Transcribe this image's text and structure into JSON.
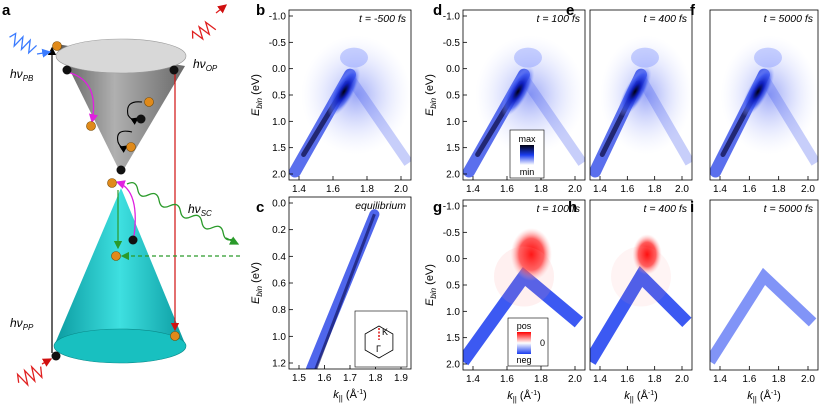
{
  "panels": {
    "a": {
      "label": "a",
      "hv_pb": "hν",
      "hv_pb_sub": "PB",
      "hv_op": "hν",
      "hv_op_sub": "OP",
      "hv_sc": "hν",
      "hv_sc_sub": "SC",
      "hv_pp": "hν",
      "hv_pp_sub": "PP"
    },
    "b": {
      "label": "b",
      "time": "t = -500 fs"
    },
    "c": {
      "label": "c",
      "time": "equilibrium"
    },
    "d": {
      "label": "d",
      "time": "t = 100 fs"
    },
    "e": {
      "label": "e",
      "time": "t = 400 fs"
    },
    "f": {
      "label": "f",
      "time": "t = 5000 fs"
    },
    "g": {
      "label": "g",
      "time": "t = 100 fs"
    },
    "h": {
      "label": "h",
      "time": "t = 400 fs"
    },
    "i": {
      "label": "i",
      "time": "t = 5000 fs"
    }
  },
  "axes": {
    "ebin_label": "E",
    "ebin_sub": "bin",
    "ebin_unit": " (eV)",
    "k_label": "k",
    "k_sub": "||",
    "k_unit": " (Å",
    "k_unit_exp": "-1",
    "k_unit_close": ")",
    "top_row_y_ticks": [
      "-1.0",
      "-0.5",
      "0.0",
      "0.5",
      "1.0",
      "1.5",
      "2.0"
    ],
    "top_row_x_ticks": [
      "1.4",
      "1.6",
      "1.8",
      "2.0"
    ],
    "c_y_ticks": [
      "0.0",
      "0.2",
      "0.4",
      "0.6",
      "0.8",
      "1.0",
      "1.2"
    ],
    "c_x_ticks": [
      "1.5",
      "1.6",
      "1.7",
      "1.8",
      "1.9"
    ],
    "g_y_ticks": [
      "-1.0",
      "-0.5",
      "0.0",
      "0.5",
      "1.0",
      "1.5",
      "2.0"
    ],
    "g_x_ticks": [
      "1.4",
      "1.6",
      "1.8",
      "2.0"
    ]
  },
  "colorbars": {
    "intensity": {
      "max": "max",
      "min": "min"
    },
    "difference": {
      "pos": "pos",
      "zero": "0",
      "neg": "neg"
    }
  },
  "bz_inset": {
    "k": "K",
    "gamma": "Γ"
  },
  "colors": {
    "intensity": "#1a2bd8",
    "pos": "#ff2020",
    "neg": "#1a3cf0",
    "cone": "#15c4c4",
    "cone_top": "#8a8a8a",
    "electron": "#e08a1a",
    "probe": "#3a7bff",
    "pump": "#e02020",
    "scatter": "#2a9a2a",
    "magenta": "#e020e0"
  }
}
